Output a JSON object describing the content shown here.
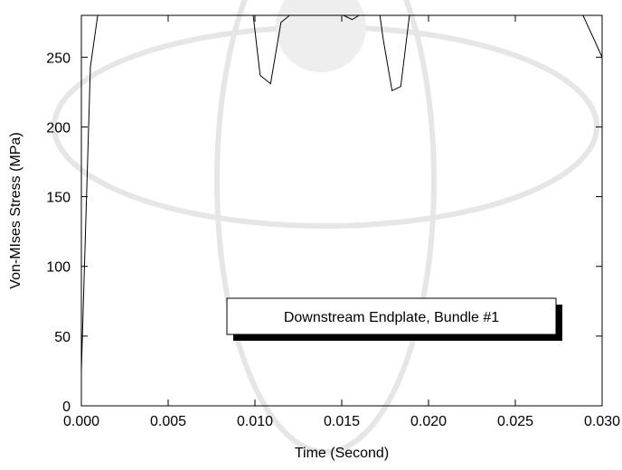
{
  "chart_data": {
    "type": "line",
    "xlabel": "Time (Second)",
    "ylabel": "Von-MIses Stress (MPa)",
    "annotation": "Downstream Endplate, Bundle #1",
    "xlim": [
      0,
      0.03
    ],
    "ylim": [
      0,
      280
    ],
    "xticks": [
      {
        "value": 0,
        "label": "0.000"
      },
      {
        "value": 0.005,
        "label": "0.005"
      },
      {
        "value": 0.01,
        "label": "0.010"
      },
      {
        "value": 0.015,
        "label": "0.015"
      },
      {
        "value": 0.02,
        "label": "0.020"
      },
      {
        "value": 0.025,
        "label": "0.025"
      },
      {
        "value": 0.03,
        "label": "0.030"
      }
    ],
    "yticks": [
      0,
      50,
      100,
      150,
      200,
      250
    ],
    "x": [
      0,
      0.00052,
      0.00094,
      0.0099,
      0.0103,
      0.0109,
      0.0115,
      0.012,
      0.0151,
      0.0156,
      0.016,
      0.0167,
      0.0172,
      0.0174,
      0.0179,
      0.0184,
      0.0189,
      0.0289,
      0.0296,
      0.03
    ],
    "series": [
      {
        "color": "#000000",
        "values": [
          25,
          243,
          280,
          280,
          237,
          231,
          275,
          280,
          280,
          277,
          280,
          280,
          280,
          262,
          226,
          229,
          280,
          280,
          261,
          250
        ]
      }
    ]
  }
}
